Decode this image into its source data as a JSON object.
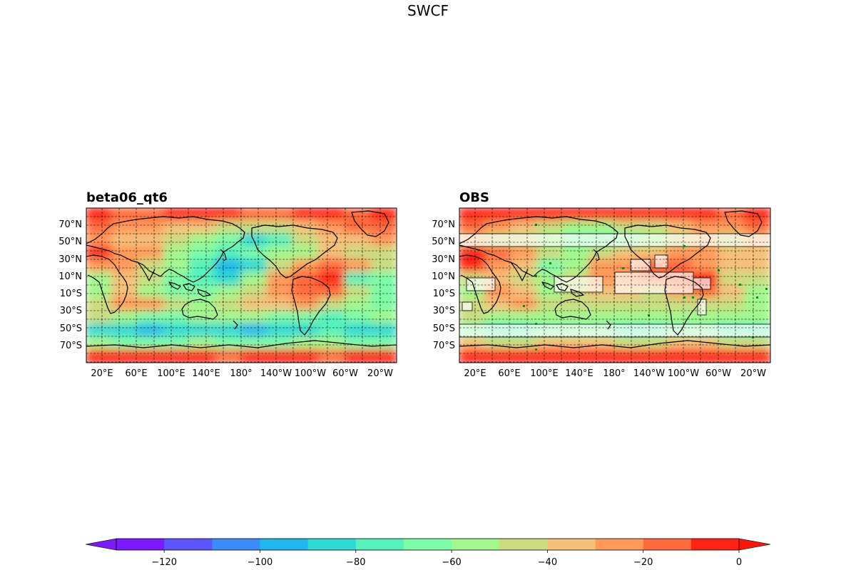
{
  "figure": {
    "title": "SWCF"
  },
  "panels": [
    {
      "title": "beta06_qt6",
      "lat_labels": [
        "70°N",
        "50°N",
        "30°N",
        "10°N",
        "10°S",
        "30°S",
        "50°S",
        "70°S"
      ],
      "lon_labels": [
        "20°E",
        "60°E",
        "100°E",
        "140°E",
        "180°",
        "140°W",
        "100°W",
        "60°W",
        "20°W"
      ],
      "field": [
        [
          -8,
          -15,
          -12,
          -10,
          -8,
          -10,
          -15,
          -12,
          -10,
          -8,
          -12,
          -10
        ],
        [
          -20,
          -30,
          -25,
          -35,
          -40,
          -45,
          -50,
          -45,
          -35,
          -25,
          -20,
          -15
        ],
        [
          -25,
          -40,
          -35,
          -45,
          -55,
          -70,
          -85,
          -75,
          -50,
          -35,
          -40,
          -30
        ],
        [
          -10,
          -25,
          -30,
          -55,
          -65,
          -80,
          -70,
          -60,
          -55,
          -40,
          -50,
          -45
        ],
        [
          -25,
          -30,
          -45,
          -60,
          -75,
          -95,
          -85,
          -50,
          -30,
          -15,
          -25,
          -45
        ],
        [
          -55,
          -40,
          -50,
          -65,
          -80,
          -90,
          -60,
          -30,
          -20,
          -10,
          -75,
          -70
        ],
        [
          -60,
          -35,
          -55,
          -70,
          -65,
          -55,
          -45,
          -25,
          -20,
          -15,
          -50,
          -65
        ],
        [
          -50,
          -30,
          -25,
          -45,
          -55,
          -50,
          -40,
          -35,
          -30,
          -45,
          -60,
          -70
        ],
        [
          -45,
          -60,
          -70,
          -65,
          -60,
          -55,
          -60,
          -65,
          -70,
          -75,
          -70,
          -60
        ],
        [
          -85,
          -90,
          -95,
          -90,
          -85,
          -88,
          -92,
          -90,
          -85,
          -80,
          -85,
          -90
        ],
        [
          -60,
          -65,
          -70,
          -65,
          -60,
          -62,
          -66,
          -64,
          -60,
          -58,
          -62,
          -64
        ],
        [
          -10,
          -8,
          -6,
          -8,
          -10,
          -12,
          -8,
          -6,
          -10,
          -12,
          -8,
          -6
        ]
      ]
    },
    {
      "title": "OBS",
      "lat_labels": [
        "70°N",
        "50°N",
        "30°N",
        "10°N",
        "10°S",
        "30°S",
        "50°S",
        "70°S"
      ],
      "lon_labels": [
        "20°E",
        "60°E",
        "100°E",
        "140°E",
        "180°",
        "140°W",
        "100°W",
        "60°W",
        "20°W"
      ],
      "field": [
        [
          -5,
          -8,
          -10,
          -8,
          -6,
          -8,
          -10,
          -8,
          -6,
          -5,
          -12,
          -8
        ],
        [
          -20,
          -25,
          -40,
          -50,
          -55,
          -55,
          -50,
          -45,
          -35,
          -25,
          -30,
          -20
        ],
        [
          -40,
          -45,
          -50,
          -60,
          -65,
          -70,
          -65,
          -55,
          -45,
          -40,
          -45,
          -35
        ],
        [
          -10,
          -20,
          -30,
          -50,
          -55,
          -45,
          -40,
          -35,
          -30,
          -25,
          -40,
          -35
        ],
        [
          -5,
          -25,
          -40,
          -70,
          -55,
          -30,
          -25,
          -20,
          -15,
          -30,
          -35,
          -40
        ],
        [
          -50,
          -35,
          -45,
          -60,
          -50,
          -25,
          -30,
          -20,
          -15,
          -10,
          -45,
          -50
        ],
        [
          -55,
          -30,
          -40,
          -55,
          -50,
          -40,
          -40,
          -45,
          -30,
          -20,
          -40,
          -55
        ],
        [
          -45,
          -35,
          -30,
          -45,
          -50,
          -50,
          -45,
          -45,
          -50,
          -45,
          -50,
          -55
        ],
        [
          -50,
          -55,
          -60,
          -60,
          -55,
          -55,
          -60,
          -60,
          -55,
          -55,
          -60,
          -55
        ],
        [
          -70,
          -75,
          -72,
          -70,
          -68,
          -70,
          -74,
          -72,
          -70,
          -68,
          -72,
          -74
        ],
        [
          -40,
          -45,
          -42,
          -40,
          -38,
          -40,
          -44,
          -42,
          -40,
          -38,
          -42,
          -44
        ],
        [
          -5,
          -6,
          -4,
          -5,
          -6,
          -8,
          -6,
          -5,
          -4,
          -6,
          -5,
          -4
        ]
      ]
    }
  ],
  "colorbar": {
    "levels": [
      -130,
      -120,
      -110,
      -100,
      -90,
      -80,
      -70,
      -60,
      -50,
      -40,
      -30,
      -20,
      -10,
      0
    ],
    "colors": [
      "#7b1afc",
      "#5c55fc",
      "#3b8cf8",
      "#20b8ec",
      "#2fd9d4",
      "#57f2bc",
      "#7dfba7",
      "#a3f78e",
      "#ccdc80",
      "#f5c07a",
      "#ff9a5a",
      "#ff6a3e",
      "#ff2315"
    ],
    "extend_low_color": "#7b1afc",
    "extend_high_color": "#ff1505",
    "ticks": [
      "−120",
      "−100",
      "−80",
      "−60",
      "−40",
      "−20",
      "0"
    ],
    "tick_values": [
      -120,
      -100,
      -80,
      -60,
      -40,
      -20,
      0
    ]
  },
  "chart_data": {
    "type": "heatmap",
    "title": "SWCF",
    "panels": [
      "beta06_qt6",
      "OBS"
    ],
    "colorbar_range": [
      -130,
      0
    ],
    "colorbar_ticks": [
      -120,
      -100,
      -80,
      -60,
      -40,
      -20,
      0
    ]
  }
}
